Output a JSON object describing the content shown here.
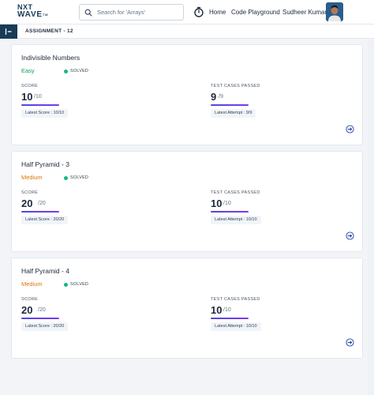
{
  "header": {
    "logo_line1": "NXT",
    "logo_line2": "WAVE",
    "logo_tm": "TM",
    "search_placeholder": "Search for 'Arrays'",
    "nav_home": "Home",
    "nav_code": "Code Playground",
    "user_name": "Sudheer Kumar"
  },
  "subheader": {
    "title": "ASSIGNMENT - 12"
  },
  "labels": {
    "score": "SCORE",
    "test_cases": "TEST CASES PASSED",
    "solved": "SOLVED"
  },
  "colors": {
    "brand": "#183b56",
    "easy": "#0f9d58",
    "medium": "#d97706",
    "solved_dot": "#10b981",
    "progress": "#5b3fd9"
  },
  "problems": [
    {
      "title": "Indivisible Numbers",
      "difficulty": "Easy",
      "status": "SOLVED",
      "score": "10",
      "score_total": "/10",
      "score_chip": "Latest Score : 10/10",
      "tests": "9",
      "tests_total": "/9",
      "tests_chip": "Latest Attempt : 9/9"
    },
    {
      "title": "Half Pyramid - 3",
      "difficulty": "Medium",
      "status": "SOLVED",
      "score": "20",
      "score_total": "/20",
      "score_chip": "Latest Score : 20/20",
      "tests": "10",
      "tests_total": "/10",
      "tests_chip": "Latest Attempt : 10/10"
    },
    {
      "title": "Half Pyramid - 4",
      "difficulty": "Medium",
      "status": "SOLVED",
      "score": "20",
      "score_total": "/20",
      "score_chip": "Latest Score : 20/20",
      "tests": "10",
      "tests_total": "/10",
      "tests_chip": "Latest Attempt : 10/10"
    }
  ],
  "icons": {
    "search": "search-icon",
    "timer": "stopwatch-icon",
    "sidebar_toggle": "sidebar-toggle-icon",
    "open_problem": "arrow-right-circle-icon"
  }
}
